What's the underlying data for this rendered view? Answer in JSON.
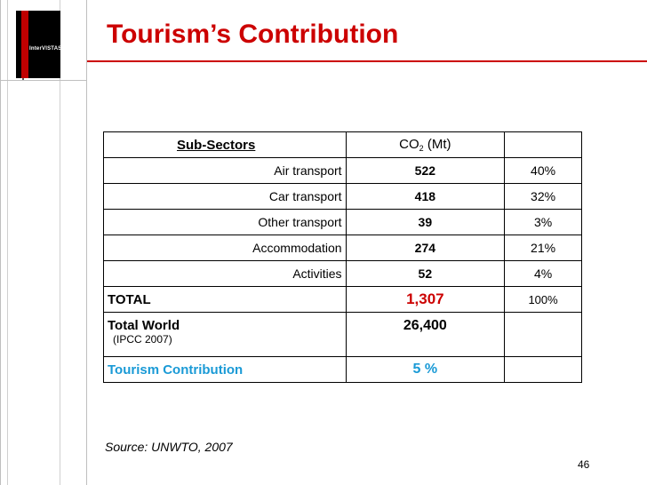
{
  "logo": {
    "text": "InterVISTAS"
  },
  "title": "Tourism’s Contribution",
  "table": {
    "header": {
      "sub_sectors": "Sub-Sectors",
      "co2_prefix": "CO",
      "co2_sub": "2",
      "co2_suffix": " (Mt)"
    },
    "rows": [
      {
        "label": "Air transport",
        "value": "522",
        "pct": "40%"
      },
      {
        "label": "Car transport",
        "value": "418",
        "pct": "32%"
      },
      {
        "label": "Other transport",
        "value": "39",
        "pct": "3%"
      },
      {
        "label": "Accommodation",
        "value": "274",
        "pct": "21%"
      },
      {
        "label": "Activities",
        "value": "52",
        "pct": "4%"
      }
    ],
    "total": {
      "label": "TOTAL",
      "value": "1,307",
      "pct": "100%"
    },
    "total_world": {
      "label": "Total World",
      "note": "(IPCC 2007)",
      "value": "26,400"
    },
    "contribution": {
      "label": "Tourism Contribution",
      "value": "5 %"
    }
  },
  "source": "Source: UNWTO, 2007",
  "page_number": "46",
  "colors": {
    "title": "#cc0000",
    "total_value": "#cc0000",
    "contribution": "#1a9ad6"
  }
}
